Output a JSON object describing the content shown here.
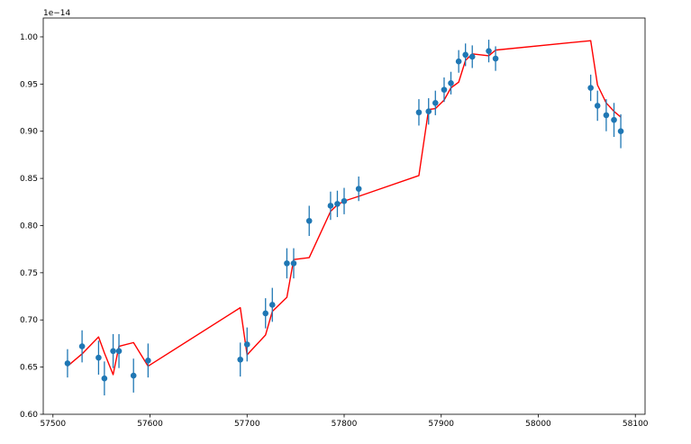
{
  "chart_data": {
    "type": "scatter",
    "title": "",
    "xlabel": "",
    "ylabel": "",
    "y_offset_label": "1e−14",
    "xlim": [
      57490,
      58110
    ],
    "ylim": [
      0.6,
      1.02
    ],
    "xticks": [
      57500,
      57600,
      57700,
      57800,
      57900,
      58000,
      58100
    ],
    "yticks": [
      0.6,
      0.65,
      0.7,
      0.75,
      0.8,
      0.85,
      0.9,
      0.95,
      1.0
    ],
    "xtick_labels": [
      "57500",
      "57600",
      "57700",
      "57800",
      "57900",
      "58000",
      "58100"
    ],
    "ytick_labels": [
      "0.60",
      "0.65",
      "0.70",
      "0.75",
      "0.80",
      "0.85",
      "0.90",
      "0.95",
      "1.00"
    ],
    "grid": false,
    "series": [
      {
        "kind": "errorbar",
        "color": "#1f77b4",
        "points": [
          {
            "x": 57515,
            "y": 0.654,
            "err": 0.015
          },
          {
            "x": 57530,
            "y": 0.672,
            "err": 0.017
          },
          {
            "x": 57547,
            "y": 0.66,
            "err": 0.018
          },
          {
            "x": 57553,
            "y": 0.638,
            "err": 0.018
          },
          {
            "x": 57562,
            "y": 0.667,
            "err": 0.018
          },
          {
            "x": 57568,
            "y": 0.667,
            "err": 0.018
          },
          {
            "x": 57583,
            "y": 0.641,
            "err": 0.018
          },
          {
            "x": 57598,
            "y": 0.657,
            "err": 0.018
          },
          {
            "x": 57693,
            "y": 0.658,
            "err": 0.018
          },
          {
            "x": 57700,
            "y": 0.674,
            "err": 0.018
          },
          {
            "x": 57719,
            "y": 0.707,
            "err": 0.016
          },
          {
            "x": 57726,
            "y": 0.716,
            "err": 0.018
          },
          {
            "x": 57741,
            "y": 0.76,
            "err": 0.016
          },
          {
            "x": 57748,
            "y": 0.76,
            "err": 0.016
          },
          {
            "x": 57764,
            "y": 0.805,
            "err": 0.016
          },
          {
            "x": 57786,
            "y": 0.821,
            "err": 0.015
          },
          {
            "x": 57793,
            "y": 0.823,
            "err": 0.014
          },
          {
            "x": 57800,
            "y": 0.826,
            "err": 0.014
          },
          {
            "x": 57815,
            "y": 0.839,
            "err": 0.013
          },
          {
            "x": 57877,
            "y": 0.92,
            "err": 0.014
          },
          {
            "x": 57887,
            "y": 0.921,
            "err": 0.014
          },
          {
            "x": 57894,
            "y": 0.93,
            "err": 0.013
          },
          {
            "x": 57903,
            "y": 0.944,
            "err": 0.013
          },
          {
            "x": 57910,
            "y": 0.951,
            "err": 0.012
          },
          {
            "x": 57918,
            "y": 0.974,
            "err": 0.012
          },
          {
            "x": 57925,
            "y": 0.981,
            "err": 0.012
          },
          {
            "x": 57932,
            "y": 0.979,
            "err": 0.012
          },
          {
            "x": 57949,
            "y": 0.985,
            "err": 0.012
          },
          {
            "x": 57956,
            "y": 0.977,
            "err": 0.013
          },
          {
            "x": 58054,
            "y": 0.946,
            "err": 0.014
          },
          {
            "x": 58061,
            "y": 0.927,
            "err": 0.016
          },
          {
            "x": 58070,
            "y": 0.917,
            "err": 0.017
          },
          {
            "x": 58078,
            "y": 0.912,
            "err": 0.018
          },
          {
            "x": 58085,
            "y": 0.9,
            "err": 0.018
          }
        ]
      },
      {
        "kind": "line",
        "color": "#ff0000",
        "points": [
          {
            "x": 57515,
            "y": 0.651
          },
          {
            "x": 57530,
            "y": 0.664
          },
          {
            "x": 57547,
            "y": 0.682
          },
          {
            "x": 57553,
            "y": 0.665
          },
          {
            "x": 57562,
            "y": 0.642
          },
          {
            "x": 57568,
            "y": 0.672
          },
          {
            "x": 57583,
            "y": 0.676
          },
          {
            "x": 57598,
            "y": 0.651
          },
          {
            "x": 57693,
            "y": 0.713
          },
          {
            "x": 57700,
            "y": 0.663
          },
          {
            "x": 57719,
            "y": 0.684
          },
          {
            "x": 57726,
            "y": 0.709
          },
          {
            "x": 57741,
            "y": 0.724
          },
          {
            "x": 57748,
            "y": 0.764
          },
          {
            "x": 57764,
            "y": 0.766
          },
          {
            "x": 57786,
            "y": 0.815
          },
          {
            "x": 57793,
            "y": 0.822
          },
          {
            "x": 57800,
            "y": 0.826
          },
          {
            "x": 57815,
            "y": 0.831
          },
          {
            "x": 57877,
            "y": 0.853
          },
          {
            "x": 57887,
            "y": 0.923
          },
          {
            "x": 57894,
            "y": 0.924
          },
          {
            "x": 57903,
            "y": 0.933
          },
          {
            "x": 57910,
            "y": 0.946
          },
          {
            "x": 57918,
            "y": 0.952
          },
          {
            "x": 57925,
            "y": 0.975
          },
          {
            "x": 57932,
            "y": 0.982
          },
          {
            "x": 57949,
            "y": 0.98
          },
          {
            "x": 57956,
            "y": 0.986
          },
          {
            "x": 58054,
            "y": 0.996
          },
          {
            "x": 58061,
            "y": 0.949
          },
          {
            "x": 58070,
            "y": 0.93
          },
          {
            "x": 58078,
            "y": 0.921
          },
          {
            "x": 58085,
            "y": 0.915
          }
        ]
      }
    ]
  }
}
